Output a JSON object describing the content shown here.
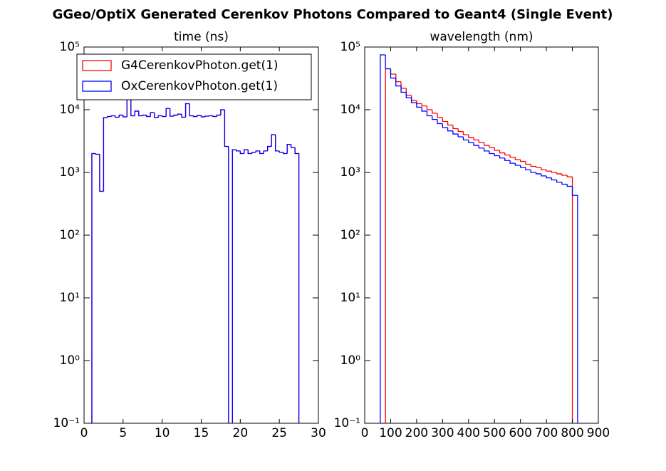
{
  "title": "GGeo/OptiX Generated Cerenkov Photons Compared to Geant4 (Single Event)",
  "chart_data": [
    {
      "type": "histogram",
      "title": "time (ns)",
      "log_y": true,
      "legend": "upper left",
      "bins": [
        1.0,
        1.5,
        2.0,
        2.5,
        3.0,
        3.5,
        4.0,
        4.5,
        5.0,
        5.5,
        6.0,
        6.5,
        7.0,
        7.5,
        8.0,
        8.5,
        9.0,
        9.5,
        10.0,
        10.5,
        11.0,
        11.5,
        12.0,
        12.5,
        13.0,
        13.5,
        14.0,
        14.5,
        15.0,
        15.5,
        16.0,
        16.5,
        17.0,
        17.5,
        18.0,
        18.5,
        19.0,
        19.5,
        20.0,
        20.5,
        21.0,
        21.5,
        22.0,
        22.5,
        23.0,
        23.5,
        24.0,
        24.5,
        25.0,
        25.5,
        26.0,
        26.5,
        27.0,
        27.5
      ],
      "series": [
        {
          "name": "G4CerenkovPhoton.get(1)",
          "color": "#ff0000",
          "values": [
            2000,
            1950,
            500,
            7500,
            7800,
            8000,
            7600,
            8200,
            7700,
            20000,
            8000,
            9500,
            8000,
            8200,
            7800,
            9000,
            7500,
            8000,
            7800,
            10500,
            7900,
            8200,
            8500,
            7600,
            12500,
            8000,
            7800,
            8100,
            7700,
            7900,
            8000,
            7800,
            8200,
            10000,
            2600,
            0,
            2300,
            2200,
            2000,
            2300,
            2000,
            2100,
            2200,
            2000,
            2200,
            2600,
            4000,
            2200,
            2100,
            2000,
            2800,
            2500,
            2000
          ]
        },
        {
          "name": "OxCerenkovPhoton.get(1)",
          "color": "#0000ff",
          "values": [
            2000,
            1950,
            500,
            7500,
            7800,
            8000,
            7600,
            8200,
            7700,
            20000,
            8000,
            9500,
            8000,
            8200,
            7800,
            9000,
            7500,
            8000,
            7800,
            10500,
            7900,
            8200,
            8500,
            7600,
            12500,
            8000,
            7800,
            8100,
            7700,
            7900,
            8000,
            7800,
            8200,
            10000,
            2600,
            0,
            2300,
            2200,
            2000,
            2300,
            2000,
            2100,
            2200,
            2000,
            2200,
            2600,
            4000,
            2200,
            2100,
            2000,
            2800,
            2500,
            2000
          ]
        }
      ],
      "xlim": [
        0,
        30
      ],
      "xticks": [
        0,
        5,
        10,
        15,
        20,
        25,
        30
      ],
      "ylim": [
        0.1,
        100000
      ],
      "yticks": [
        {
          "value": 0.1,
          "label": "10⁻¹"
        },
        {
          "value": 1,
          "label": "10⁰"
        },
        {
          "value": 10,
          "label": "10¹"
        },
        {
          "value": 100,
          "label": "10²"
        },
        {
          "value": 1000,
          "label": "10³"
        },
        {
          "value": 10000,
          "label": "10⁴"
        },
        {
          "value": 100000,
          "label": "10⁵"
        }
      ]
    },
    {
      "type": "histogram",
      "title": "wavelength (nm)",
      "log_y": true,
      "bins": [
        60,
        80,
        100,
        120,
        140,
        160,
        180,
        200,
        220,
        240,
        260,
        280,
        300,
        320,
        340,
        360,
        380,
        400,
        420,
        440,
        460,
        480,
        500,
        520,
        540,
        560,
        580,
        600,
        620,
        640,
        660,
        680,
        700,
        720,
        740,
        760,
        780,
        800,
        820
      ],
      "series": [
        {
          "name": "G4CerenkovPhoton.get(1)",
          "color": "#ff0000",
          "values": [
            0,
            45000,
            37000,
            28000,
            22000,
            17000,
            14000,
            12500,
            11500,
            10000,
            8800,
            7500,
            6500,
            5700,
            5000,
            4500,
            4000,
            3600,
            3300,
            3000,
            2700,
            2500,
            2250,
            2050,
            1900,
            1750,
            1600,
            1500,
            1350,
            1250,
            1200,
            1100,
            1050,
            1000,
            950,
            900,
            850,
            0
          ]
        },
        {
          "name": "OxCerenkovPhoton.get(1)",
          "color": "#0000ff",
          "values": [
            75000,
            45000,
            32000,
            24000,
            19000,
            15500,
            13000,
            11000,
            9500,
            8000,
            7000,
            6000,
            5200,
            4600,
            4100,
            3700,
            3300,
            3000,
            2700,
            2450,
            2200,
            2000,
            1850,
            1700,
            1550,
            1400,
            1300,
            1200,
            1100,
            1000,
            950,
            880,
            820,
            760,
            700,
            650,
            600,
            430
          ]
        }
      ],
      "xlim": [
        0,
        900
      ],
      "xticks": [
        0,
        100,
        200,
        300,
        400,
        500,
        600,
        700,
        800,
        900
      ],
      "ylim": [
        0.1,
        100000
      ],
      "yticks": [
        {
          "value": 0.1,
          "label": "10⁻¹"
        },
        {
          "value": 1,
          "label": "10⁰"
        },
        {
          "value": 10,
          "label": "10¹"
        },
        {
          "value": 100,
          "label": "10²"
        },
        {
          "value": 1000,
          "label": "10³"
        },
        {
          "value": 10000,
          "label": "10⁴"
        },
        {
          "value": 100000,
          "label": "10⁵"
        }
      ]
    }
  ]
}
